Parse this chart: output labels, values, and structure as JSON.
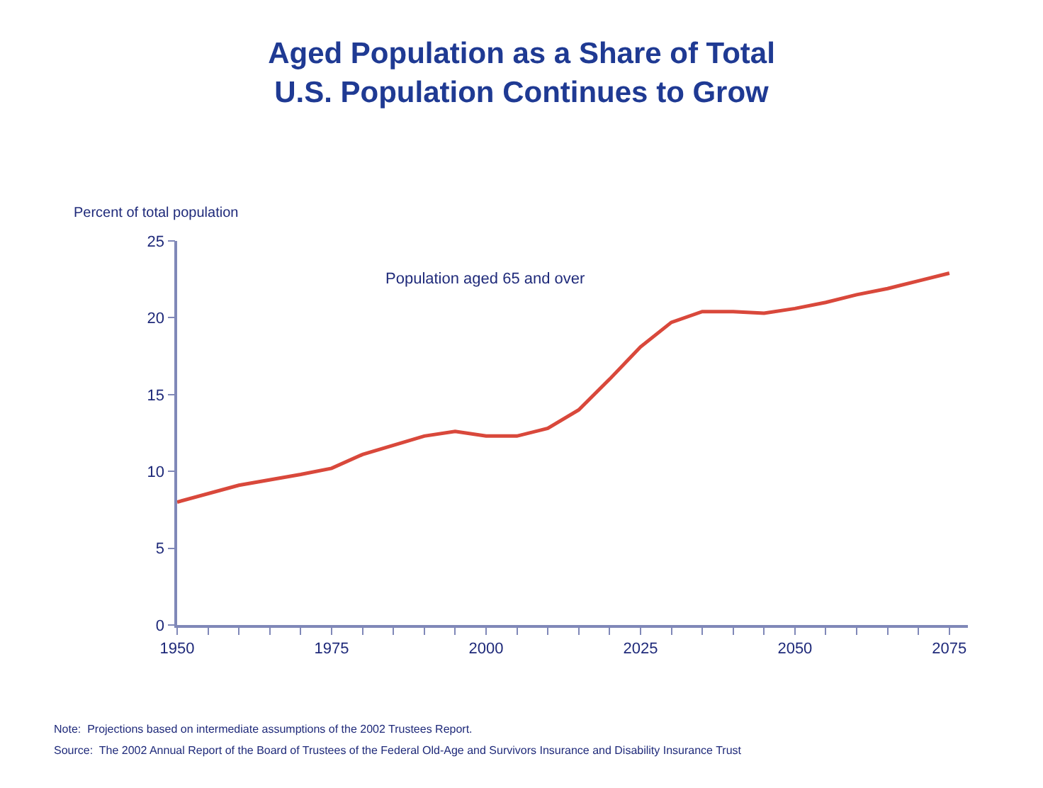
{
  "chart_data": {
    "type": "line",
    "title": "Aged Population as a Share of Total\nU.S. Population Continues to Grow",
    "ylabel": "Percent of total population",
    "x": [
      1950,
      1960,
      1970,
      1975,
      1980,
      1985,
      1990,
      1995,
      2000,
      2005,
      2010,
      2015,
      2020,
      2025,
      2030,
      2035,
      2040,
      2045,
      2050,
      2055,
      2060,
      2065,
      2070,
      2075
    ],
    "series": [
      {
        "name": "Population aged 65 and over",
        "color": "#d9483b",
        "values": [
          8.0,
          9.1,
          9.8,
          10.2,
          11.1,
          11.7,
          12.3,
          12.6,
          12.3,
          12.3,
          12.8,
          14.0,
          16.0,
          18.1,
          19.7,
          20.4,
          20.4,
          20.3,
          20.6,
          21.0,
          21.5,
          21.9,
          22.4,
          22.9
        ]
      }
    ],
    "xlim": [
      1950,
      2078
    ],
    "xticks": [
      1950,
      {
        "value": 1955,
        "label": null
      },
      {
        "value": 1960,
        "label": null
      },
      {
        "value": 1965,
        "label": null
      },
      {
        "value": 1970,
        "label": null
      },
      1975,
      {
        "value": 1980,
        "label": null
      },
      {
        "value": 1985,
        "label": null
      },
      {
        "value": 1990,
        "label": null
      },
      {
        "value": 1995,
        "label": null
      },
      2000,
      {
        "value": 2005,
        "label": null
      },
      {
        "value": 2010,
        "label": null
      },
      {
        "value": 2015,
        "label": null
      },
      {
        "value": 2020,
        "label": null
      },
      2025,
      {
        "value": 2030,
        "label": null
      },
      {
        "value": 2035,
        "label": null
      },
      {
        "value": 2040,
        "label": null
      },
      {
        "value": 2045,
        "label": null
      },
      2050,
      {
        "value": 2055,
        "label": null
      },
      {
        "value": 2060,
        "label": null
      },
      {
        "value": 2065,
        "label": null
      },
      {
        "value": 2070,
        "label": null
      },
      2075
    ],
    "ylim": [
      0,
      25
    ],
    "yticks": [
      0,
      5,
      10,
      15,
      20,
      25
    ],
    "legend": false,
    "marker": "none",
    "line_style": "solid",
    "annotations": [
      "Note:  Projections based on intermediate assumptions of the 2002 Trustees Report.",
      "Source:  The 2002 Annual Report of the Board of Trustees of the Federal Old-Age and Survivors Insurance and Disability Insurance Trust"
    ]
  }
}
